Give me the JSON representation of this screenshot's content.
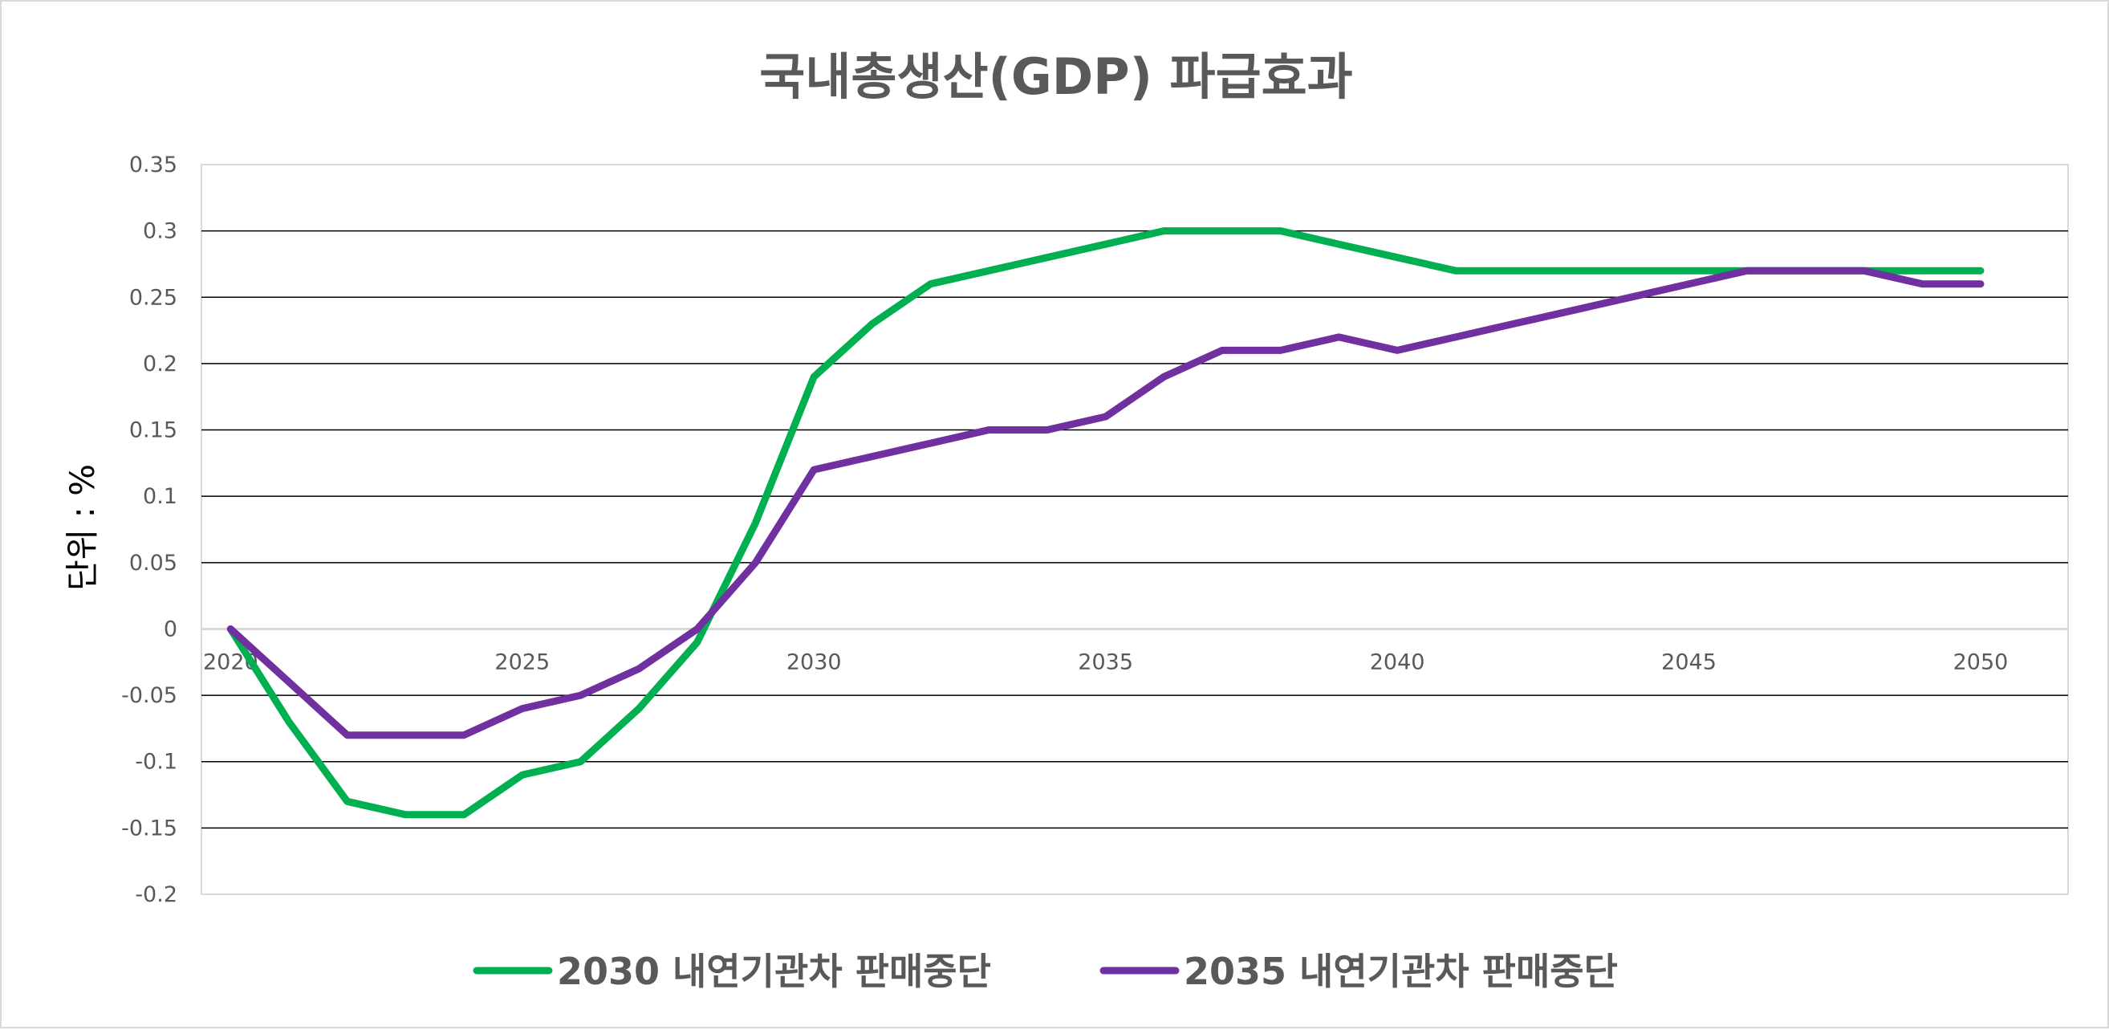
{
  "chart_data": {
    "type": "line",
    "title": "국내총생산(GDP) 파급효과",
    "xlabel": "",
    "ylabel": "단위 : %",
    "x": [
      2020,
      2021,
      2022,
      2023,
      2024,
      2025,
      2026,
      2027,
      2028,
      2029,
      2030,
      2031,
      2032,
      2033,
      2034,
      2035,
      2036,
      2037,
      2038,
      2039,
      2040,
      2041,
      2042,
      2043,
      2044,
      2045,
      2046,
      2047,
      2048,
      2049,
      2050
    ],
    "x_tick_labels": [
      "2020",
      "2025",
      "2030",
      "2035",
      "2040",
      "2045",
      "2050"
    ],
    "x_tick_values": [
      2020,
      2025,
      2030,
      2035,
      2040,
      2045,
      2050
    ],
    "y_tick_labels": [
      "0.35",
      "0.3",
      "0.25",
      "0.2",
      "0.15",
      "0.1",
      "0.05",
      "0",
      "-0.05",
      "-0.1",
      "-0.15",
      "-0.2"
    ],
    "y_tick_values": [
      0.35,
      0.3,
      0.25,
      0.2,
      0.15,
      0.1,
      0.05,
      0,
      -0.05,
      -0.1,
      -0.15,
      -0.2
    ],
    "xlim": [
      2019.5,
      2051.5
    ],
    "ylim": [
      -0.2,
      0.35
    ],
    "grid": true,
    "legend_position": "bottom",
    "series": [
      {
        "name": "2030 내연기관차 판매중단",
        "color": "#00b050",
        "values": [
          0,
          -0.07,
          -0.13,
          -0.14,
          -0.14,
          -0.11,
          -0.1,
          -0.06,
          -0.01,
          0.08,
          0.19,
          0.23,
          0.26,
          0.27,
          0.28,
          0.29,
          0.3,
          0.3,
          0.3,
          0.29,
          0.28,
          0.27,
          0.27,
          0.27,
          0.27,
          0.27,
          0.27,
          0.27,
          0.27,
          0.27,
          0.27
        ]
      },
      {
        "name": "2035 내연기관차 판매중단",
        "color": "#7030a0",
        "values": [
          0,
          -0.04,
          -0.08,
          -0.08,
          -0.08,
          -0.06,
          -0.05,
          -0.03,
          0,
          0.05,
          0.12,
          0.13,
          0.14,
          0.15,
          0.15,
          0.16,
          0.19,
          0.21,
          0.21,
          0.22,
          0.21,
          0.22,
          0.23,
          0.24,
          0.25,
          0.26,
          0.27,
          0.27,
          0.27,
          0.26,
          0.26
        ]
      }
    ]
  }
}
